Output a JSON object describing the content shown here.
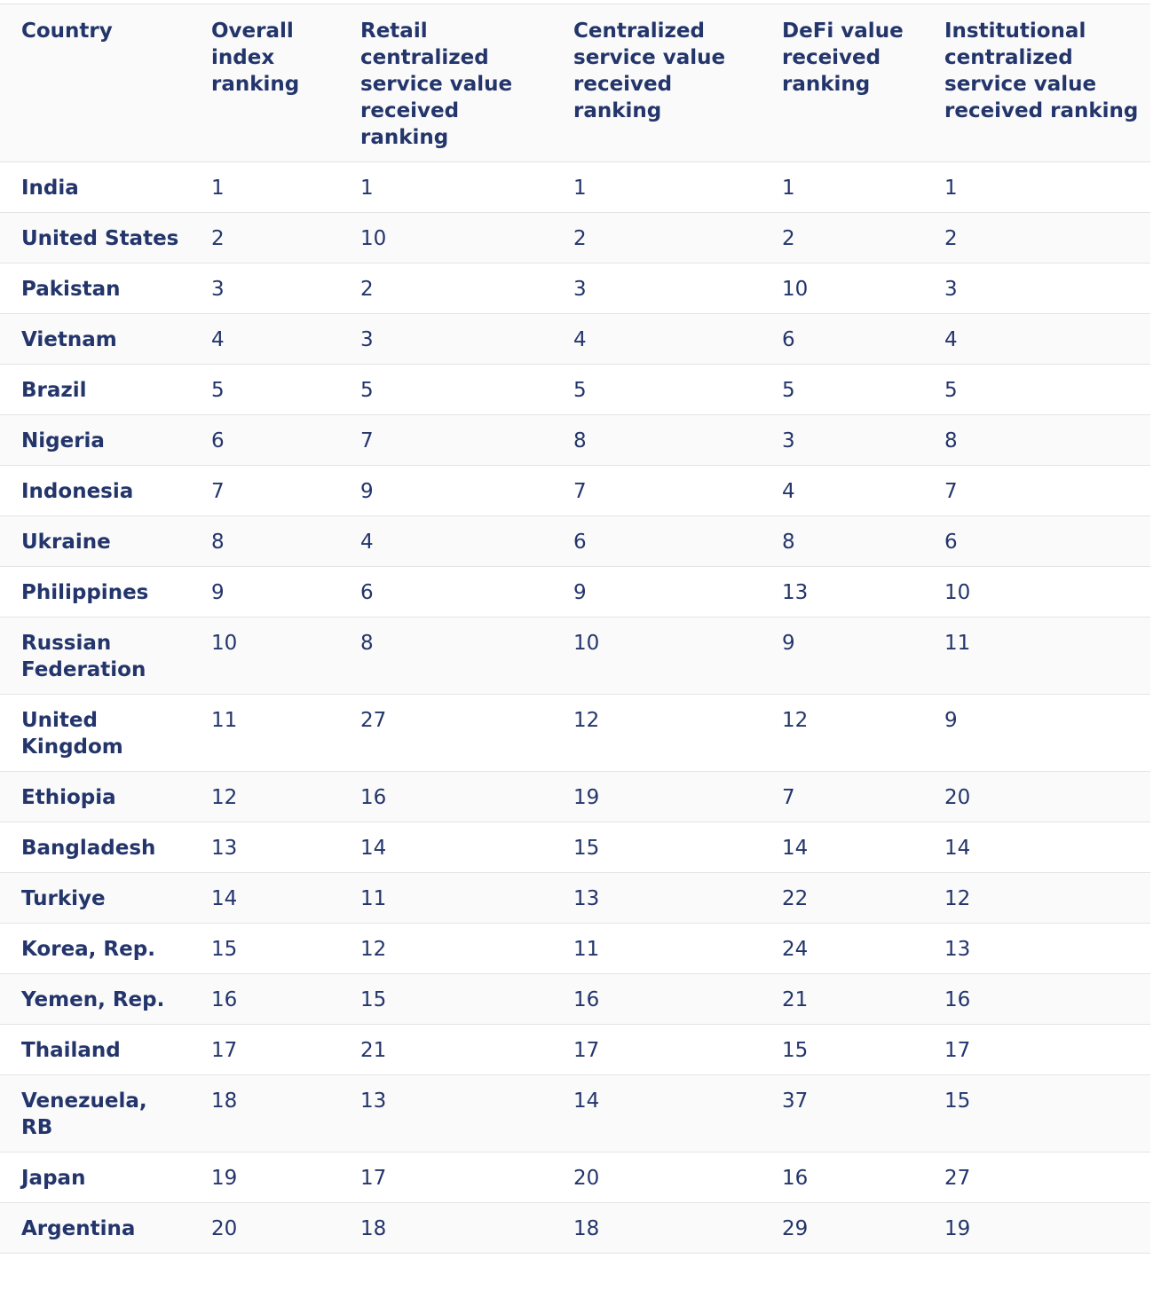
{
  "table": {
    "headers": [
      "Country",
      "Overall index ranking",
      "Retail centralized service value received ranking",
      "Centralized service value received ranking",
      "DeFi value received ranking",
      "Institutional centralized service value received ranking"
    ],
    "rows": [
      [
        "India",
        "1",
        "1",
        "1",
        "1",
        "1"
      ],
      [
        "United States",
        "2",
        "10",
        "2",
        "2",
        "2"
      ],
      [
        "Pakistan",
        "3",
        "2",
        "3",
        "10",
        "3"
      ],
      [
        "Vietnam",
        "4",
        "3",
        "4",
        "6",
        "4"
      ],
      [
        "Brazil",
        "5",
        "5",
        "5",
        "5",
        "5"
      ],
      [
        "Nigeria",
        "6",
        "7",
        "8",
        "3",
        "8"
      ],
      [
        "Indonesia",
        "7",
        "9",
        "7",
        "4",
        "7"
      ],
      [
        "Ukraine",
        "8",
        "4",
        "6",
        "8",
        "6"
      ],
      [
        "Philippines",
        "9",
        "6",
        "9",
        "13",
        "10"
      ],
      [
        "Russian Federation",
        "10",
        "8",
        "10",
        "9",
        "11"
      ],
      [
        "United Kingdom",
        "11",
        "27",
        "12",
        "12",
        "9"
      ],
      [
        "Ethiopia",
        "12",
        "16",
        "19",
        "7",
        "20"
      ],
      [
        "Bangladesh",
        "13",
        "14",
        "15",
        "14",
        "14"
      ],
      [
        "Turkiye",
        "14",
        "11",
        "13",
        "22",
        "12"
      ],
      [
        "Korea, Rep.",
        "15",
        "12",
        "11",
        "24",
        "13"
      ],
      [
        "Yemen, Rep.",
        "16",
        "15",
        "16",
        "21",
        "16"
      ],
      [
        "Thailand",
        "17",
        "21",
        "17",
        "15",
        "17"
      ],
      [
        "Venezuela, RB",
        "18",
        "13",
        "14",
        "37",
        "15"
      ],
      [
        "Japan",
        "19",
        "17",
        "20",
        "16",
        "27"
      ],
      [
        "Argentina",
        "20",
        "18",
        "18",
        "29",
        "19"
      ]
    ]
  },
  "colors": {
    "text": "#23356b",
    "header_bg": "#fafafa",
    "border": "#e4e4e4"
  }
}
